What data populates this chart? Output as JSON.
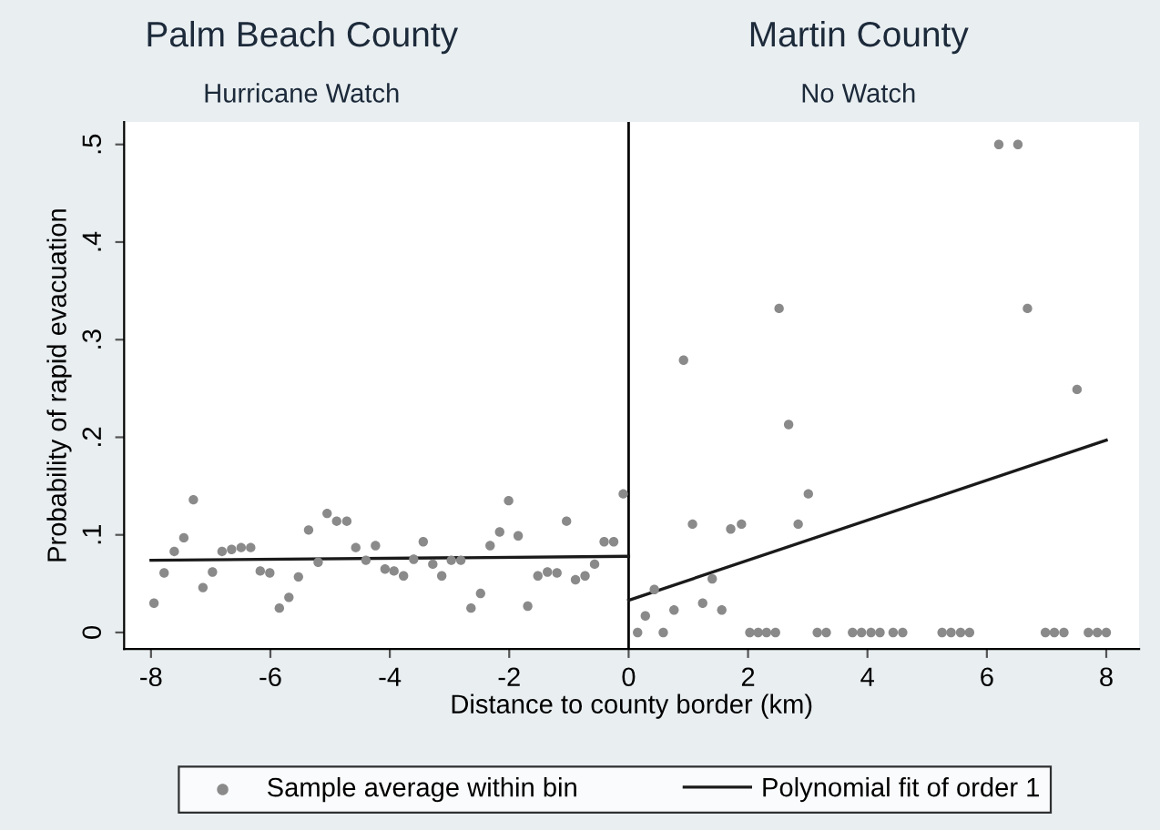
{
  "chart_data": {
    "type": "scatter",
    "xlabel": "Distance to county border (km)",
    "ylabel": "Probability of rapid evacuation",
    "annotations": [
      "Palm Beach County",
      "Hurricane Watch",
      "Martin County",
      "No Watch"
    ],
    "xlim": [
      -8.45,
      8.55
    ],
    "xticks": [
      -8,
      -6,
      -4,
      -2,
      0,
      2,
      4,
      6,
      8
    ],
    "ylim": [
      -0.017,
      0.523
    ],
    "yticks": [
      {
        "value": 0,
        "label": "0"
      },
      {
        "value": 0.1,
        "label": ".1"
      },
      {
        "value": 0.2,
        "label": ".2"
      },
      {
        "value": 0.3,
        "label": ".3"
      },
      {
        "value": 0.4,
        "label": ".4"
      },
      {
        "value": 0.5,
        "label": ".5"
      }
    ],
    "grid": false,
    "legend": "bottom",
    "marker": "circle",
    "ref_lines": [
      {
        "axis": "x",
        "value": 0,
        "color": "#000000"
      }
    ],
    "series": [
      {
        "name": "Sample average within bin",
        "color": "#8a8a8a",
        "x": [
          -7.95,
          -7.78,
          -7.61,
          -7.45,
          -7.29,
          -7.13,
          -6.97,
          -6.81,
          -6.65,
          -6.49,
          -6.33,
          -6.17,
          -6.01,
          -5.85,
          -5.69,
          -5.53,
          -5.36,
          -5.2,
          -5.05,
          -4.89,
          -4.72,
          -4.57,
          -4.4,
          -4.24,
          -4.08,
          -3.93,
          -3.77,
          -3.6,
          -3.44,
          -3.28,
          -3.13,
          -2.97,
          -2.81,
          -2.64,
          -2.48,
          -2.32,
          -2.16,
          -2.01,
          -1.85,
          -1.69,
          -1.52,
          -1.36,
          -1.2,
          -1.04,
          -0.89,
          -0.73,
          -0.57,
          -0.41,
          -0.25,
          -0.09,
          0.15,
          0.28,
          0.43,
          0.58,
          0.76,
          0.92,
          1.07,
          1.24,
          1.4,
          1.56,
          1.71,
          1.89,
          2.03,
          2.17,
          2.31,
          2.46,
          2.52,
          2.68,
          2.84,
          3.01,
          3.16,
          3.31,
          3.75,
          3.9,
          4.06,
          4.21,
          4.43,
          4.59,
          5.25,
          5.4,
          5.56,
          5.71,
          6.2,
          6.52,
          6.68,
          6.98,
          7.13,
          7.29,
          7.51,
          7.7,
          7.85,
          8.0
        ],
        "values": [
          0.03,
          0.061,
          0.083,
          0.097,
          0.136,
          0.046,
          0.062,
          0.083,
          0.085,
          0.087,
          0.087,
          0.063,
          0.061,
          0.025,
          0.036,
          0.057,
          0.105,
          0.072,
          0.122,
          0.114,
          0.114,
          0.087,
          0.074,
          0.089,
          0.065,
          0.063,
          0.058,
          0.075,
          0.093,
          0.07,
          0.058,
          0.074,
          0.074,
          0.025,
          0.04,
          0.089,
          0.103,
          0.135,
          0.099,
          0.027,
          0.058,
          0.062,
          0.061,
          0.114,
          0.054,
          0.058,
          0.07,
          0.093,
          0.093,
          0.142,
          0,
          0.017,
          0.044,
          0,
          0.023,
          0.279,
          0.111,
          0.03,
          0.055,
          0.023,
          0.106,
          0.111,
          0,
          0,
          0,
          0,
          0.332,
          0.213,
          0.111,
          0.142,
          0,
          0,
          0,
          0,
          0,
          0,
          0,
          0,
          0,
          0,
          0,
          0,
          0.5,
          0.5,
          0.332,
          0,
          0,
          0,
          0.249,
          0,
          0,
          0
        ]
      },
      {
        "name": "Polynomial fit of order 1",
        "type": "line",
        "color": "#1a1a1a",
        "marker": "none",
        "line_style": "solid",
        "x": [
          -8,
          0
        ],
        "values": [
          0.074,
          0.078
        ]
      },
      {
        "type": "line",
        "color": "#1a1a1a",
        "marker": "none",
        "line_style": "solid",
        "x": [
          0,
          8
        ],
        "values": [
          0.033,
          0.197
        ]
      }
    ]
  }
}
